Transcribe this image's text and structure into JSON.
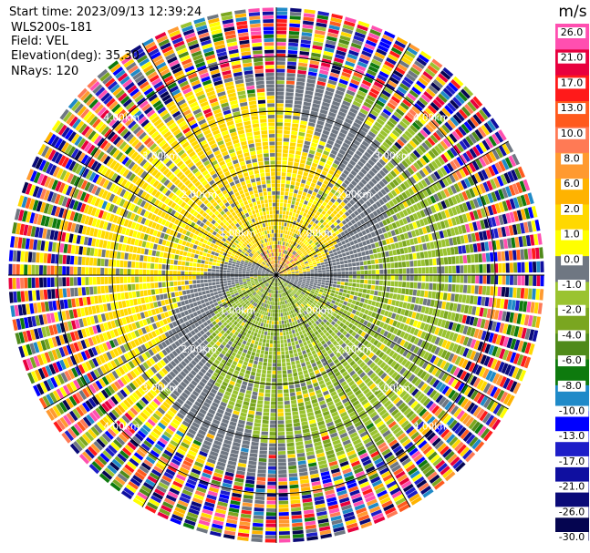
{
  "header": {
    "lines": [
      "Start time: 2023/09/13 12:39:24",
      "WLS200s-181",
      "Field: VEL",
      "Elevation(deg): 35.30",
      "NRays: 120"
    ]
  },
  "chart_data": {
    "type": "heatmap",
    "projection": "polar-ppi",
    "field": "VEL",
    "nrays": 120,
    "range_rings": [
      {
        "range_km": 1.0,
        "label": "1.00km"
      },
      {
        "range_km": 2.0,
        "label": "2.00km"
      },
      {
        "range_km": 3.0,
        "label": "3.00km"
      },
      {
        "range_km": 4.0,
        "label": "4.00km"
      }
    ],
    "max_range_km": 4.9,
    "spokes_deg": [
      0,
      30,
      60,
      90,
      120,
      150
    ],
    "colorbar": {
      "unit": "m/s",
      "tick_labels": [
        "26.0",
        "21.0",
        "17.0",
        "13.0",
        "10.0",
        "8.0",
        "6.0",
        "2.0",
        "1.0",
        "0.0",
        "-1.0",
        "-2.0",
        "-4.0",
        "-6.0",
        "-8.0",
        "-10.0",
        "-13.0",
        "-17.0",
        "-21.0",
        "-26.0",
        "-30.0"
      ],
      "bands": [
        {
          "color": "#ff4fb0"
        },
        {
          "color": "#e8003e"
        },
        {
          "color": "#ff1a1a"
        },
        {
          "color": "#ff5a1e"
        },
        {
          "color": "#ff7a55"
        },
        {
          "color": "#ff9a30"
        },
        {
          "color": "#ffb300"
        },
        {
          "color": "#ffd800"
        },
        {
          "color": "#ffff00"
        },
        {
          "color": "#6f7782"
        },
        {
          "color": "#9ac330"
        },
        {
          "color": "#7aa620"
        },
        {
          "color": "#4f8a1a"
        },
        {
          "color": "#0e7a0e"
        },
        {
          "color": "#1f8ac8"
        },
        {
          "color": "#0000ff"
        },
        {
          "color": "#1e1ec8"
        },
        {
          "color": "#0f0fa0"
        },
        {
          "color": "#0a0a78"
        },
        {
          "color": "#050550"
        }
      ]
    },
    "velocity_pattern": {
      "inner_positive_color": "#ffd800",
      "inner_negative_color": "#9ac330",
      "zero_color": "#6f7782",
      "noise_onset_km": 3.7
    }
  }
}
